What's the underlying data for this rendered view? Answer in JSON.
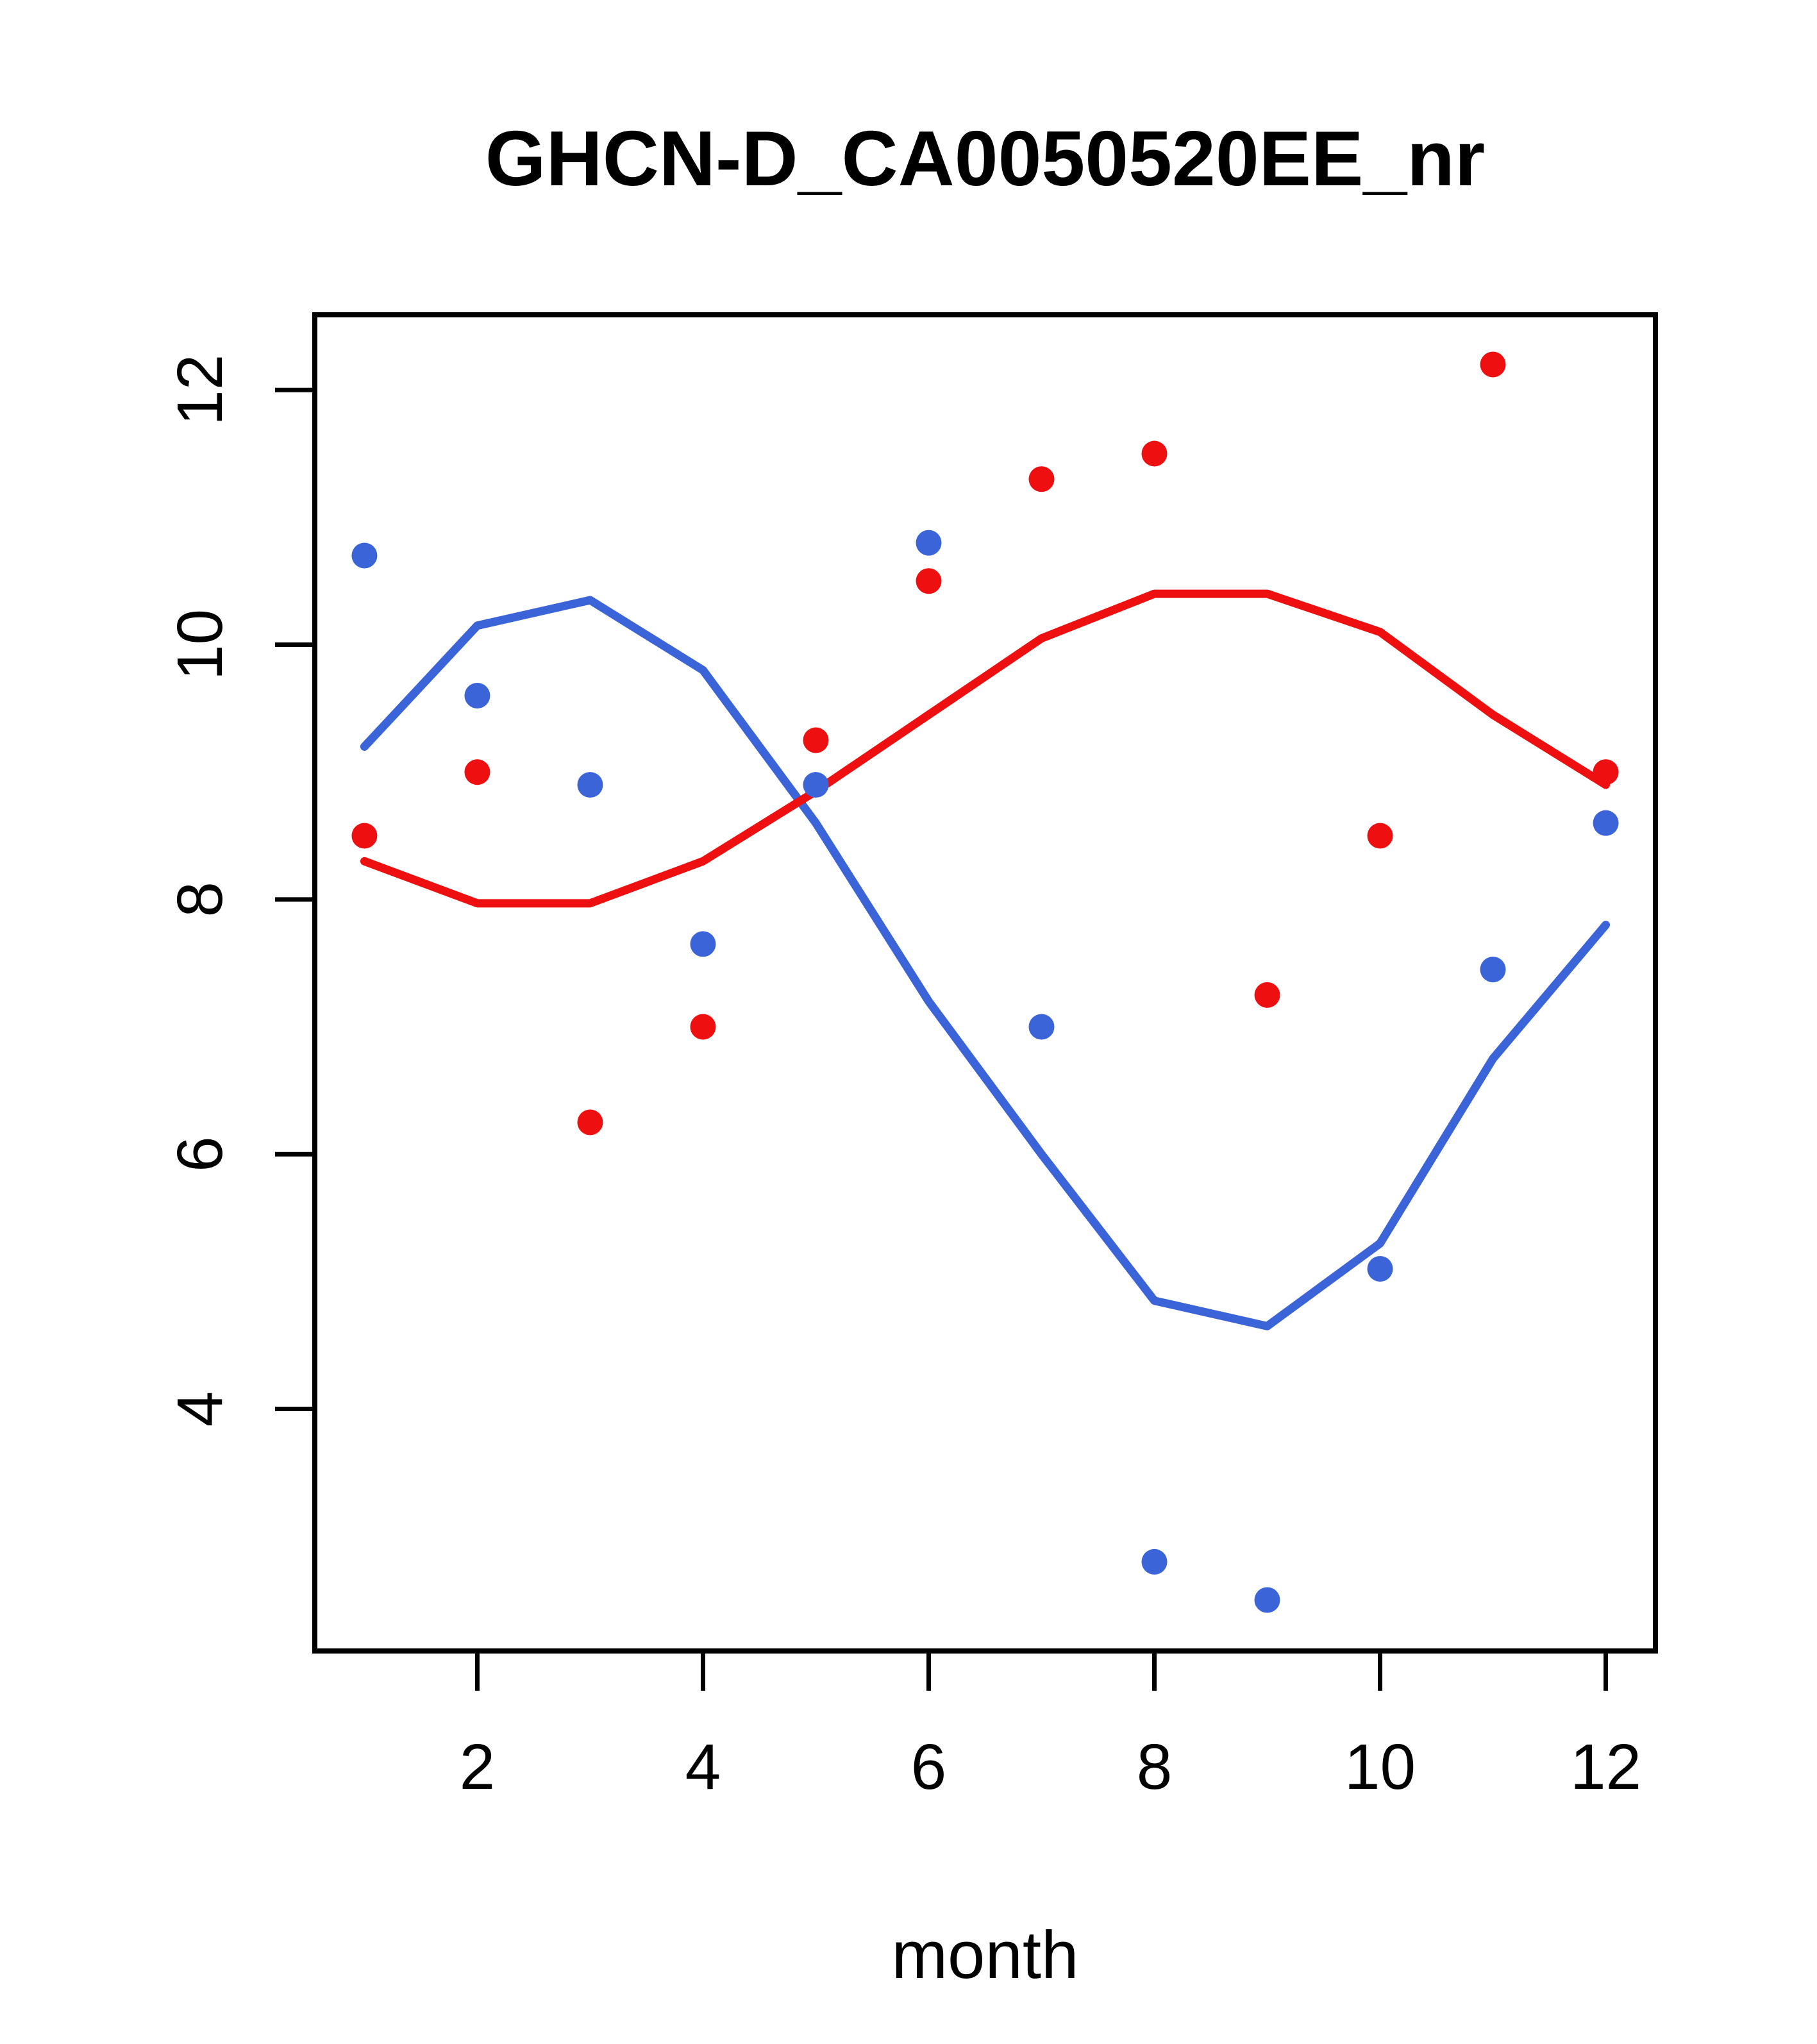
{
  "figure": {
    "title": "GHCN-D_CA0050520EE_nr",
    "xlabel": "month"
  },
  "chart_data": {
    "type": "scatter",
    "title": "GHCN-D_CA0050520EE_nr",
    "xlabel": "month",
    "ylabel": "",
    "x": [
      1,
      2,
      3,
      4,
      5,
      6,
      7,
      8,
      9,
      10,
      11,
      12
    ],
    "x_ticks": [
      2,
      4,
      6,
      8,
      10,
      12
    ],
    "y_ticks": [
      4,
      6,
      8,
      10,
      12
    ],
    "xlim": [
      0.56,
      12.44
    ],
    "ylim": [
      2.1,
      12.59
    ],
    "grid": false,
    "legend": "none",
    "colors": {
      "red": "#EE1010",
      "blue": "#3C64D9",
      "axis": "#000000",
      "background": "#FFFFFF"
    },
    "series": [
      {
        "name": "blue_smooth_line",
        "kind": "line",
        "color_key": "blue",
        "values": [
          9.2,
          10.15,
          10.35,
          9.8,
          8.6,
          7.2,
          6.0,
          4.85,
          4.65,
          5.3,
          6.75,
          7.8
        ]
      },
      {
        "name": "red_smooth_line",
        "kind": "line",
        "color_key": "red",
        "values": [
          8.3,
          7.97,
          7.97,
          8.3,
          8.85,
          9.45,
          10.05,
          10.4,
          10.4,
          10.1,
          9.45,
          8.9
        ]
      },
      {
        "name": "blue_points",
        "kind": "points",
        "color_key": "blue",
        "values": [
          10.7,
          9.6,
          8.9,
          7.65,
          8.9,
          10.8,
          7.0,
          2.8,
          2.5,
          5.1,
          7.45,
          8.6
        ]
      },
      {
        "name": "red_points",
        "kind": "points",
        "color_key": "red",
        "values": [
          8.5,
          9.0,
          6.25,
          7.0,
          9.25,
          10.5,
          11.3,
          11.5,
          7.25,
          8.5,
          12.2,
          9.0
        ]
      }
    ]
  }
}
